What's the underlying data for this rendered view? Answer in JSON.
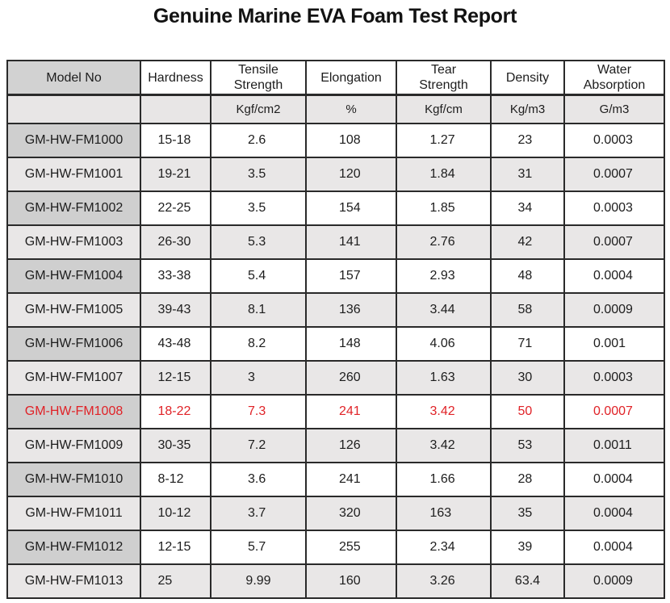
{
  "title": "Genuine Marine EVA Foam Test Report",
  "colors": {
    "highlight_text": "#e02227",
    "model_cell_bg": "#cfcfcf",
    "header_model_bg": "#d2d2d2",
    "alt_row_bg": "#e9e7e7",
    "units_row_bg": "#e8e6e6",
    "border": "#2a2a2a"
  },
  "table": {
    "columns": [
      "Model No",
      "Hardness",
      "Tensile\nStrength",
      "Elongation",
      "Tear\nStrength",
      "Density",
      "Water\nAbsorption"
    ],
    "units": [
      "",
      "",
      "Kgf/cm2",
      "%",
      "Kgf/cm",
      "Kg/m3",
      "G/m3"
    ],
    "rows": [
      {
        "model": "GM-HW-FM1000",
        "values": [
          "15-18",
          "2.6",
          "108",
          "1.27",
          "23",
          "0.0003"
        ],
        "highlight": false
      },
      {
        "model": "GM-HW-FM1001",
        "values": [
          "19-21",
          "3.5",
          "120",
          "1.84",
          "31",
          "0.0007"
        ],
        "highlight": false
      },
      {
        "model": "GM-HW-FM1002",
        "values": [
          "22-25",
          "3.5",
          "154",
          "1.85",
          "34",
          "0.0003"
        ],
        "highlight": false
      },
      {
        "model": "GM-HW-FM1003",
        "values": [
          "26-30",
          "5.3",
          "141",
          "2.76",
          "42",
          "0.0007"
        ],
        "highlight": false
      },
      {
        "model": "GM-HW-FM1004",
        "values": [
          "33-38",
          "5.4",
          "157",
          "2.93",
          "48",
          "0.0004"
        ],
        "highlight": false
      },
      {
        "model": "GM-HW-FM1005",
        "values": [
          "39-43",
          "8.1",
          "136",
          "3.44",
          "58",
          "0.0009"
        ],
        "highlight": false
      },
      {
        "model": "GM-HW-FM1006",
        "values": [
          "43-48",
          "8.2",
          "148",
          "4.06",
          "71",
          "0.001"
        ],
        "highlight": false
      },
      {
        "model": "GM-HW-FM1007",
        "values": [
          "12-15",
          "3",
          "260",
          "1.63",
          "30",
          "0.0003"
        ],
        "highlight": false
      },
      {
        "model": "GM-HW-FM1008",
        "values": [
          "18-22",
          "7.3",
          "241",
          "3.42",
          "50",
          "0.0007"
        ],
        "highlight": true
      },
      {
        "model": "GM-HW-FM1009",
        "values": [
          "30-35",
          "7.2",
          "126",
          "3.42",
          "53",
          "0.0011"
        ],
        "highlight": false
      },
      {
        "model": "GM-HW-FM1010",
        "values": [
          "8-12",
          "3.6",
          "241",
          "1.66",
          "28",
          "0.0004"
        ],
        "highlight": false
      },
      {
        "model": "GM-HW-FM1011",
        "values": [
          "10-12",
          "3.7",
          "320",
          "163",
          "35",
          "0.0004"
        ],
        "highlight": false
      },
      {
        "model": "GM-HW-FM1012",
        "values": [
          "12-15",
          "5.7",
          "255",
          "2.34",
          "39",
          "0.0004"
        ],
        "highlight": false
      },
      {
        "model": "GM-HW-FM1013",
        "values": [
          "25",
          "9.99",
          "160",
          "3.26",
          "63.4",
          "0.0009"
        ],
        "highlight": false
      }
    ]
  }
}
